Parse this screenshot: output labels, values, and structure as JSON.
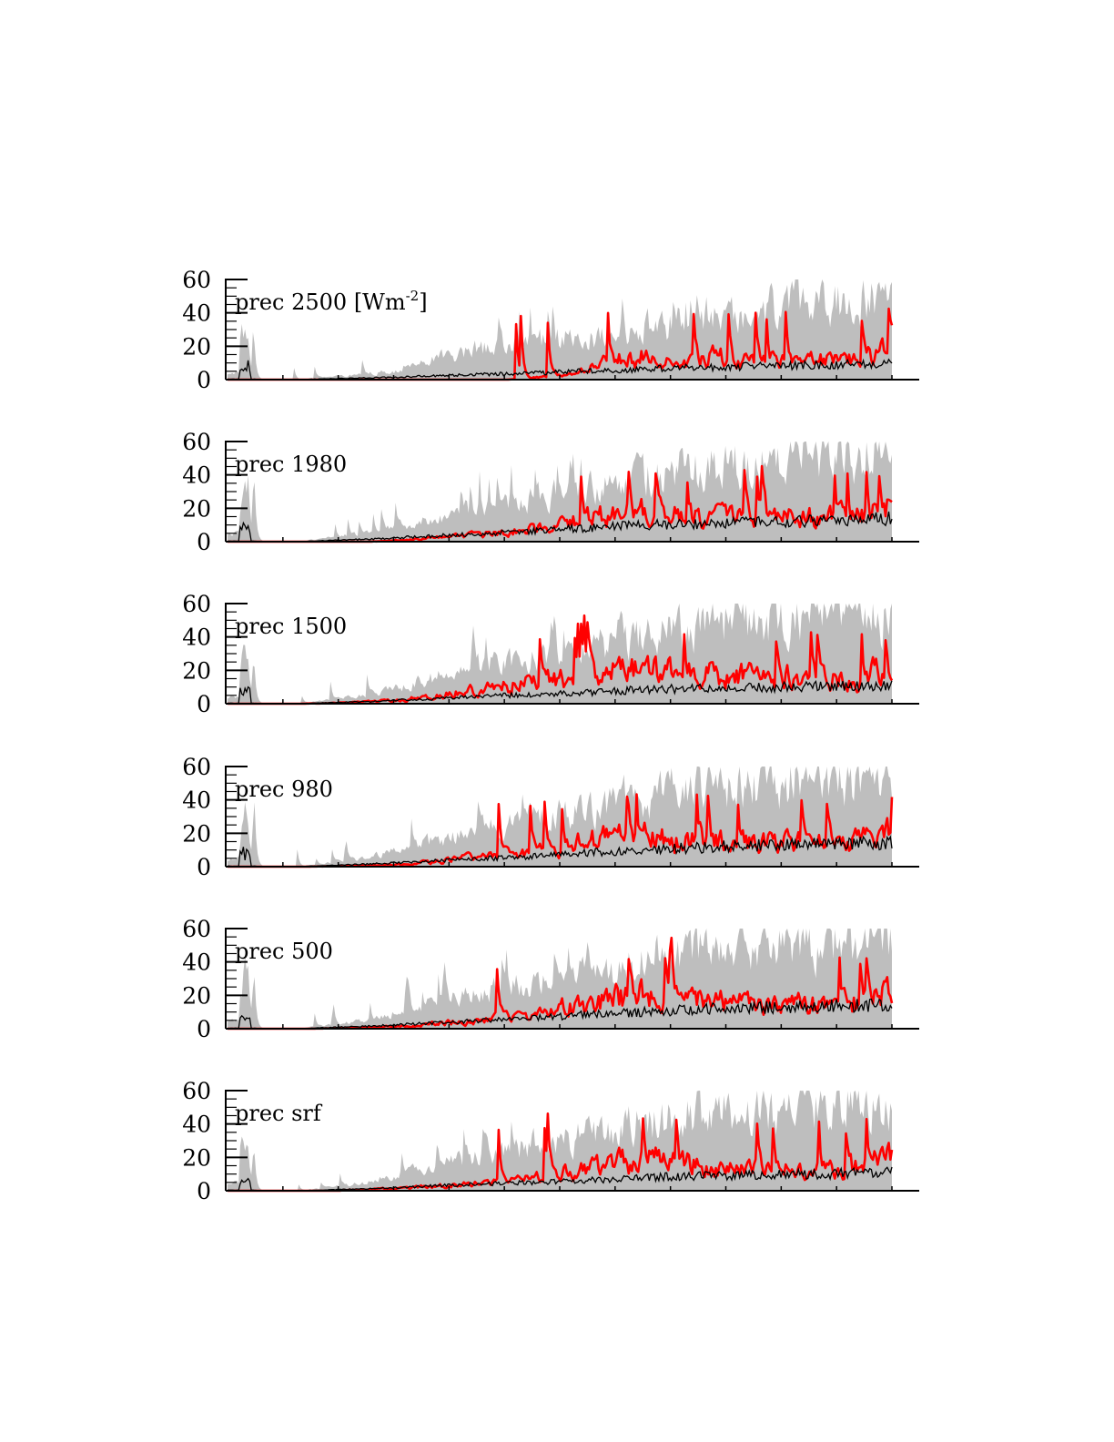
{
  "chart_data": [
    {
      "type": "area",
      "label": "prec 2500",
      "unit_label": "[Wm",
      "unit_superscript": "-2",
      "unit_close": "]",
      "ylim": [
        0,
        60
      ],
      "yticks": [
        "0",
        "20",
        "40",
        "60"
      ],
      "series": [
        {
          "role": "envelope",
          "color": "#bebebe"
        },
        {
          "role": "mean",
          "color": "#000000"
        },
        {
          "role": "highlight",
          "color": "#ff0000"
        }
      ],
      "env_base": [
        34,
        0,
        0,
        2,
        4,
        6,
        14,
        20,
        22,
        26,
        28,
        30,
        34,
        40,
        44,
        48,
        50,
        52,
        54,
        56
      ],
      "mean_base": [
        9,
        0,
        0,
        0.6,
        1,
        1.6,
        2.4,
        3,
        3.5,
        4,
        5,
        5.5,
        6.5,
        7,
        7.5,
        8,
        8.5,
        9,
        9.5,
        10
      ],
      "red_base": [
        0,
        0,
        0,
        0,
        0,
        0,
        0,
        0,
        0,
        2,
        6,
        14,
        18,
        16,
        18,
        14,
        14,
        14,
        16,
        22
      ],
      "red_start": 0.39
    },
    {
      "type": "area",
      "label": "prec 1980",
      "ylim": [
        0,
        60
      ],
      "yticks": [
        "0",
        "20",
        "40",
        "60"
      ],
      "series": [
        {
          "role": "envelope",
          "color": "#bebebe"
        },
        {
          "role": "mean",
          "color": "#000000"
        },
        {
          "role": "highlight",
          "color": "#ff0000"
        }
      ],
      "env_base": [
        38,
        0,
        0,
        3,
        6,
        10,
        16,
        22,
        26,
        30,
        34,
        38,
        44,
        48,
        52,
        52,
        54,
        56,
        58,
        58
      ],
      "mean_base": [
        10,
        0,
        0,
        0.8,
        1.5,
        2.5,
        3.5,
        4.5,
        5.5,
        6.5,
        8,
        9,
        10,
        10.5,
        11,
        11.5,
        12,
        12.5,
        13,
        14
      ],
      "red_base": [
        0,
        0,
        0,
        0,
        0,
        1,
        3,
        5,
        7,
        10,
        16,
        20,
        24,
        20,
        20,
        18,
        18,
        18,
        20,
        26
      ],
      "red_start": 0.17
    },
    {
      "type": "area",
      "label": "prec 1500",
      "ylim": [
        0,
        60
      ],
      "yticks": [
        "0",
        "20",
        "40",
        "60"
      ],
      "series": [
        {
          "role": "envelope",
          "color": "#bebebe"
        },
        {
          "role": "mean",
          "color": "#000000"
        },
        {
          "role": "highlight",
          "color": "#ff0000"
        }
      ],
      "env_base": [
        30,
        0,
        0,
        3,
        6,
        12,
        18,
        24,
        28,
        32,
        36,
        40,
        46,
        50,
        54,
        54,
        56,
        56,
        58,
        58
      ],
      "mean_base": [
        8,
        0,
        0,
        0.7,
        1.3,
        2.2,
        3,
        4,
        5,
        5.5,
        6.5,
        7.5,
        8.5,
        9,
        9.5,
        10,
        10,
        10.5,
        11,
        11
      ],
      "red_base": [
        0,
        0,
        0,
        0.5,
        1.5,
        3,
        6,
        10,
        14,
        16,
        20,
        24,
        26,
        22,
        22,
        20,
        20,
        20,
        22,
        28
      ],
      "red_start": 0.09
    },
    {
      "type": "area",
      "label": "prec 980",
      "ylim": [
        0,
        60
      ],
      "yticks": [
        "0",
        "20",
        "40",
        "60"
      ],
      "series": [
        {
          "role": "envelope",
          "color": "#bebebe"
        },
        {
          "role": "mean",
          "color": "#000000"
        },
        {
          "role": "highlight",
          "color": "#ff0000"
        }
      ],
      "env_base": [
        38,
        0,
        0,
        3,
        6,
        12,
        18,
        24,
        28,
        32,
        36,
        40,
        46,
        50,
        54,
        54,
        56,
        56,
        58,
        58
      ],
      "mean_base": [
        10,
        0,
        0,
        0.8,
        1.5,
        2.5,
        3.5,
        4.5,
        5.5,
        6.5,
        8,
        9,
        10,
        11,
        12,
        12.5,
        13,
        13.5,
        14,
        14
      ],
      "red_base": [
        0,
        0,
        0,
        0.3,
        1,
        2,
        4,
        7,
        10,
        12,
        18,
        22,
        24,
        20,
        20,
        18,
        18,
        18,
        20,
        26
      ],
      "red_start": 0.09
    },
    {
      "type": "area",
      "label": "prec 500",
      "ylim": [
        0,
        60
      ],
      "yticks": [
        "0",
        "20",
        "40",
        "60"
      ],
      "series": [
        {
          "role": "envelope",
          "color": "#bebebe"
        },
        {
          "role": "mean",
          "color": "#000000"
        },
        {
          "role": "highlight",
          "color": "#ff0000"
        }
      ],
      "env_base": [
        38,
        0,
        0,
        3,
        6,
        12,
        18,
        24,
        28,
        32,
        36,
        40,
        46,
        50,
        54,
        54,
        56,
        56,
        58,
        58
      ],
      "mean_base": [
        10,
        0,
        0,
        0.8,
        1.5,
        2.5,
        3.5,
        4.5,
        5.5,
        6.5,
        8,
        9,
        10,
        11,
        12,
        12.5,
        13,
        13.5,
        14,
        14
      ],
      "red_base": [
        0,
        0,
        0,
        0.3,
        1,
        2,
        4,
        6,
        9,
        12,
        18,
        22,
        26,
        22,
        20,
        18,
        18,
        18,
        20,
        28
      ],
      "red_start": 0.13
    },
    {
      "type": "area",
      "label": "prec srf",
      "ylim": [
        0,
        60
      ],
      "yticks": [
        "0",
        "20",
        "40",
        "60"
      ],
      "series": [
        {
          "role": "envelope",
          "color": "#bebebe"
        },
        {
          "role": "mean",
          "color": "#000000"
        },
        {
          "role": "highlight",
          "color": "#ff0000"
        }
      ],
      "env_base": [
        38,
        0,
        0,
        3,
        6,
        12,
        18,
        24,
        28,
        32,
        36,
        40,
        46,
        50,
        54,
        54,
        56,
        56,
        58,
        58
      ],
      "mean_base": [
        8,
        0,
        0,
        0.6,
        1.2,
        2,
        3,
        3.8,
        4.5,
        5.2,
        6,
        7,
        8,
        8.5,
        9,
        9.5,
        10,
        10,
        10.5,
        11
      ],
      "red_base": [
        0,
        0,
        0,
        0.3,
        1,
        2,
        3.5,
        5,
        7,
        10,
        16,
        20,
        24,
        20,
        18,
        16,
        16,
        16,
        18,
        24
      ],
      "red_start": 0.17
    }
  ]
}
